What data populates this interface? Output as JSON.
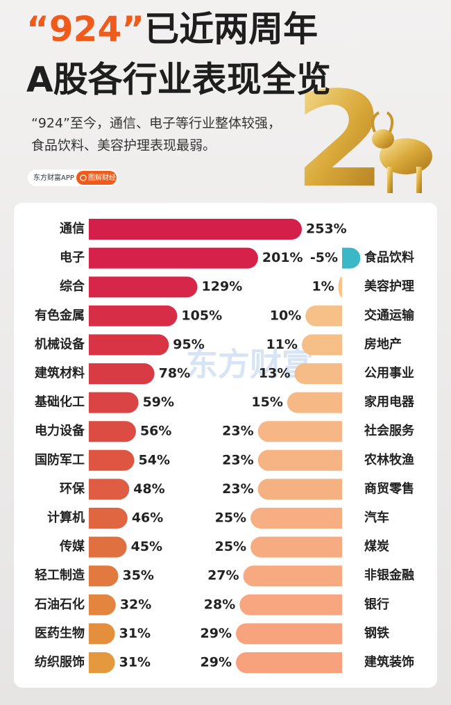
{
  "header": {
    "title_highlight": "“924”",
    "title_rest": "已近两周年",
    "title_line2": "A股各行业表现全览",
    "subtitle": [
      "“924”至今，通信、电子等行业整体较强，",
      "食品饮料、美容护理表现最弱。"
    ],
    "badge_source": "东方财富APP",
    "badge_tag": "图解财经",
    "watermark": "东方财富",
    "decor_number": "2"
  },
  "chart_data": [
    {
      "type": "bar",
      "orientation": "horizontal",
      "direction": "right",
      "categories": [
        "通信",
        "电子",
        "综合",
        "有色金属",
        "机械设备",
        "建筑材料",
        "基础化工",
        "电力设备",
        "国防军工",
        "环保",
        "计算机",
        "传媒",
        "轻工制造",
        "石油石化",
        "医药生物",
        "纺织服饰"
      ],
      "values": [
        253,
        201,
        129,
        105,
        95,
        78,
        59,
        56,
        54,
        48,
        46,
        45,
        35,
        32,
        31,
        31
      ],
      "value_labels": [
        "253%",
        "201%",
        "129%",
        "105%",
        "95%",
        "78%",
        "59%",
        "56%",
        "54%",
        "48%",
        "46%",
        "45%",
        "35%",
        "32%",
        "31%",
        "31%"
      ],
      "colors": [
        "#d51f4b",
        "#d6224a",
        "#d62748",
        "#d72d47",
        "#d83446",
        "#d93b45",
        "#db4444",
        "#dc4c43",
        "#de5542",
        "#df5d42",
        "#e06641",
        "#e17041",
        "#e27a40",
        "#e3843f",
        "#e48f3e",
        "#e5993e"
      ]
    },
    {
      "type": "bar",
      "orientation": "horizontal",
      "direction": "left",
      "categories": [
        "食品饮料",
        "美容护理",
        "交通运输",
        "房地产",
        "公用事业",
        "家用电器",
        "社会服务",
        "农林牧渔",
        "商贸零售",
        "汽车",
        "煤炭",
        "非银金融",
        "银行",
        "钢铁",
        "建筑装饰"
      ],
      "values": [
        -5,
        1,
        10,
        11,
        13,
        15,
        23,
        23,
        23,
        25,
        25,
        27,
        28,
        29,
        29
      ],
      "value_labels": [
        "-5%",
        "1%",
        "10%",
        "11%",
        "13%",
        "15%",
        "23%",
        "23%",
        "23%",
        "25%",
        "25%",
        "27%",
        "28%",
        "29%",
        "29%"
      ],
      "colors": [
        "#3bb8c8",
        "#f6c48a",
        "#f6c189",
        "#f6bf88",
        "#f6bc87",
        "#f6b986",
        "#f6b685",
        "#f6b484",
        "#f6b183",
        "#f7ae82",
        "#f7ab81",
        "#f7a980",
        "#f7a67f",
        "#f7a37e",
        "#f7a17d"
      ]
    }
  ]
}
